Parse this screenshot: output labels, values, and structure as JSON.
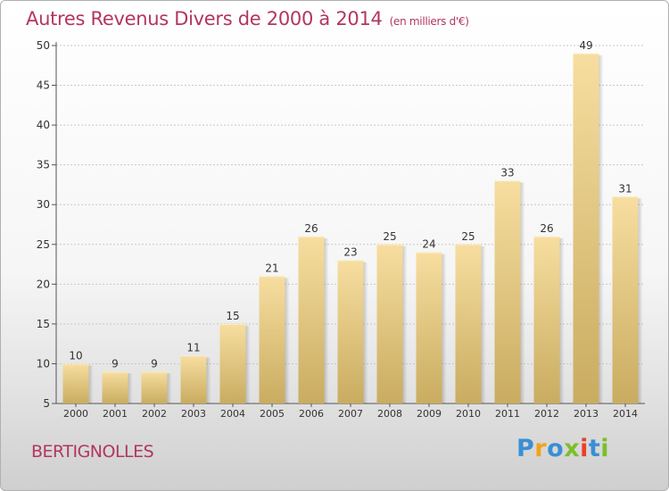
{
  "header": {
    "title": "Autres Revenus Divers de 2000 à 2014",
    "unit": "(en milliers d'€)"
  },
  "footer": {
    "commune": "BERTIGNOLLES",
    "logo": {
      "text": "Proxiti",
      "colors": [
        "#3a8fd4",
        "#f2a21a",
        "#3a8fd4",
        "#7cbf2a",
        "#e8402a",
        "#3a8fd4",
        "#7cbf2a"
      ]
    }
  },
  "chart_data": {
    "type": "bar",
    "title": "Autres Revenus Divers de 2000 à 2014",
    "subtitle": "(en milliers d'€)",
    "categories": [
      "2000",
      "2001",
      "2002",
      "2003",
      "2004",
      "2005",
      "2006",
      "2007",
      "2008",
      "2009",
      "2010",
      "2011",
      "2012",
      "2013",
      "2014"
    ],
    "values": [
      10,
      9,
      9,
      11,
      15,
      21,
      26,
      23,
      25,
      24,
      25,
      33,
      26,
      49,
      31
    ],
    "ylim": [
      5,
      50
    ],
    "yticks": [
      5,
      10,
      15,
      20,
      25,
      30,
      35,
      40,
      45,
      50
    ],
    "grid": true,
    "legend": "none",
    "colors": {
      "bar_top": "#f7dea0",
      "bar_bottom": "#c9ac60",
      "grid": "#c8c8c8",
      "text": "#333333"
    }
  }
}
